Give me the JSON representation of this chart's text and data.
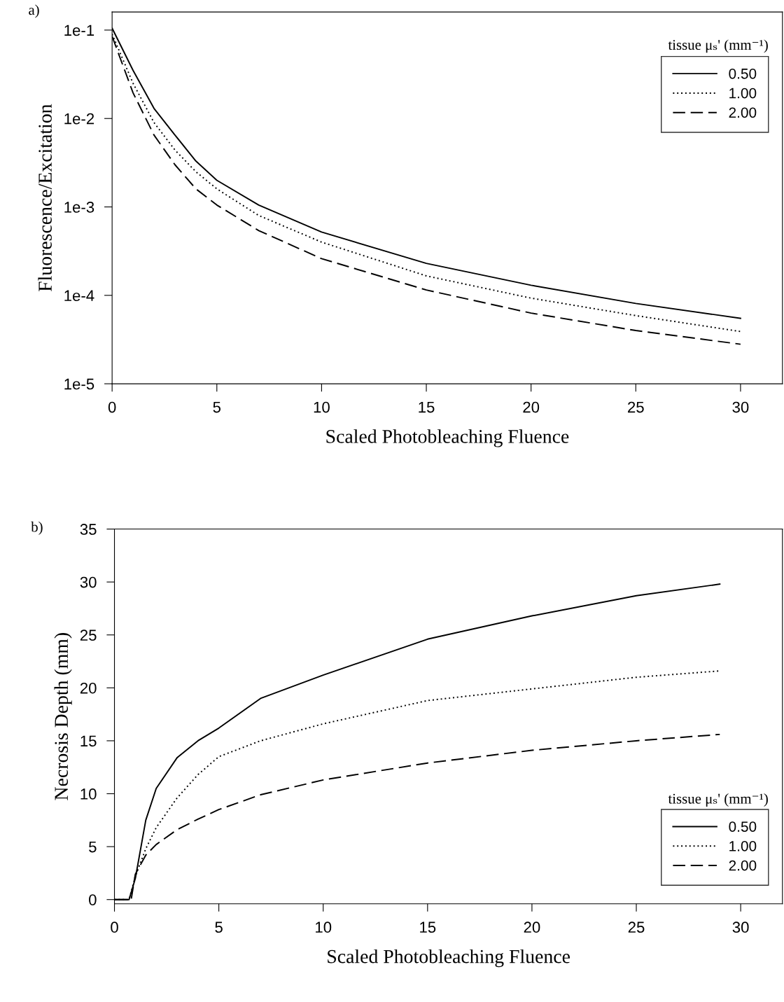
{
  "chart_data": [
    {
      "type": "line",
      "xlabel": "Scaled Photobleaching Fluence",
      "ylabel": "Fluorescence/Excitation",
      "legend_title": "tissue μₛ' (mm⁻¹)",
      "annotations": [
        "a)"
      ],
      "log": "y",
      "xlim": [
        0,
        32
      ],
      "xticks": [
        0,
        5,
        10,
        15,
        20,
        25,
        30
      ],
      "ylim": [
        1e-05,
        0.16
      ],
      "yticks": [
        {
          "value": 0.1,
          "label": "1e-1"
        },
        {
          "value": 0.01,
          "label": "1e-2"
        },
        {
          "value": 0.001,
          "label": "1e-3"
        },
        {
          "value": 0.0001,
          "label": "1e-4"
        },
        {
          "value": 1e-05,
          "label": "1e-5"
        }
      ],
      "grid": false,
      "legend": "top right",
      "marker": "none",
      "series": [
        {
          "name": "0.50",
          "color": "#000000",
          "line_style": "solid",
          "x": [
            0,
            1,
            2,
            3,
            4,
            5,
            7,
            10,
            15,
            20,
            25,
            30
          ],
          "values": [
            0.105,
            0.035,
            0.013,
            0.0065,
            0.0033,
            0.002,
            0.00105,
            0.00052,
            0.00023,
            0.00013,
            8.1e-05,
            5.5e-05
          ]
        },
        {
          "name": "1.00",
          "color": "#000000",
          "line_style": "dotted",
          "x": [
            0,
            1,
            2,
            3,
            4,
            5,
            7,
            10,
            15,
            20,
            25,
            30
          ],
          "values": [
            0.09,
            0.025,
            0.009,
            0.0044,
            0.0025,
            0.0016,
            0.0008,
            0.0004,
            0.000166,
            9.3e-05,
            5.9e-05,
            3.9e-05
          ]
        },
        {
          "name": "2.00",
          "color": "#000000",
          "line_style": "dashed",
          "x": [
            0,
            1,
            2,
            3,
            4,
            5,
            7,
            10,
            15,
            20,
            25,
            30
          ],
          "values": [
            0.085,
            0.0195,
            0.0065,
            0.003,
            0.0016,
            0.00105,
            0.00054,
            0.00026,
            0.000115,
            6.3e-05,
            4e-05,
            2.8e-05
          ]
        }
      ]
    },
    {
      "type": "line",
      "xlabel": "Scaled Photobleaching Fluence",
      "ylabel": "Necrosis Depth (mm)",
      "legend_title": "tissue μₛ' (mm⁻¹)",
      "annotations": [
        "b)"
      ],
      "xlim": [
        0,
        32
      ],
      "xticks": [
        0,
        5,
        10,
        15,
        20,
        25,
        30
      ],
      "ylim": [
        -0.4,
        35
      ],
      "yticks": [
        0,
        5,
        10,
        15,
        20,
        25,
        30,
        35
      ],
      "grid": false,
      "legend": "bottom right",
      "marker": "none",
      "series": [
        {
          "name": "0.50",
          "color": "#000000",
          "line_style": "solid",
          "x": [
            0,
            0.7,
            1,
            1.5,
            2,
            3,
            4,
            5,
            7,
            10,
            15,
            20,
            25,
            29
          ],
          "values": [
            0,
            0,
            2.0,
            7.5,
            10.5,
            13.4,
            15.0,
            16.2,
            19.0,
            21.2,
            24.6,
            26.8,
            28.7,
            29.8
          ]
        },
        {
          "name": "1.00",
          "color": "#000000",
          "line_style": "dotted",
          "x": [
            0,
            0.7,
            1,
            1.5,
            2,
            3,
            4,
            5,
            7,
            10,
            15,
            20,
            25,
            29
          ],
          "values": [
            0,
            0,
            2.2,
            4.8,
            6.8,
            9.6,
            11.8,
            13.5,
            15.0,
            16.6,
            18.8,
            19.9,
            21.0,
            21.6
          ]
        },
        {
          "name": "2.00",
          "color": "#000000",
          "line_style": "dashed",
          "x": [
            0,
            0.8,
            1,
            1.5,
            2,
            3,
            4,
            5,
            7,
            10,
            15,
            20,
            25,
            29
          ],
          "values": [
            0,
            0,
            2.4,
            4.2,
            5.2,
            6.6,
            7.6,
            8.5,
            9.9,
            11.3,
            12.9,
            14.1,
            15.0,
            15.6
          ]
        }
      ]
    }
  ]
}
